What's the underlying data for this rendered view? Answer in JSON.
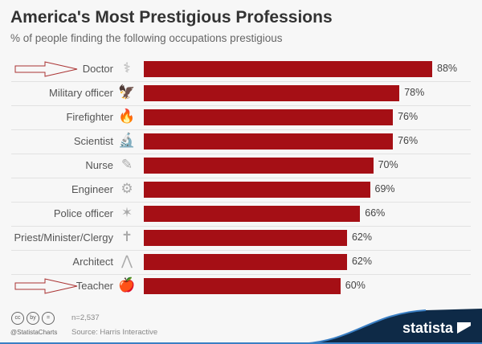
{
  "chart_data": {
    "type": "bar",
    "orientation": "horizontal",
    "title": "America's Most Prestigious Professions",
    "subtitle": "% of people finding the following occupations prestigious",
    "categories": [
      "Doctor",
      "Military officer",
      "Firefighter",
      "Scientist",
      "Nurse",
      "Engineer",
      "Police officer",
      "Priest/Minister/Clergy",
      "Architect",
      "Teacher"
    ],
    "icons": [
      "stethoscope-icon",
      "eagle-icon",
      "flame-icon",
      "microscope-icon",
      "syringe-icon",
      "gears-icon",
      "badge-star-icon",
      "cross-icon",
      "compass-icon",
      "apple-books-icon"
    ],
    "icon_glyphs": [
      "⚕",
      "🦅",
      "🔥",
      "🔬",
      "✎",
      "⚙",
      "✶",
      "✝",
      "⋀",
      "🍎"
    ],
    "values": [
      88,
      78,
      76,
      76,
      70,
      69,
      66,
      62,
      62,
      60
    ],
    "value_labels": [
      "88%",
      "78%",
      "76%",
      "76%",
      "70%",
      "69%",
      "66%",
      "62%",
      "62%",
      "60%"
    ],
    "highlighted": [
      "Doctor",
      "Teacher"
    ],
    "xlim": [
      0,
      100
    ],
    "bar_color": "#a50f15"
  },
  "footer": {
    "license_icons": [
      "cc",
      "by",
      "="
    ],
    "handle": "@StatistaCharts",
    "sample": "n=2,537",
    "source": "Source: Harris Interactive",
    "brand": "statista"
  }
}
